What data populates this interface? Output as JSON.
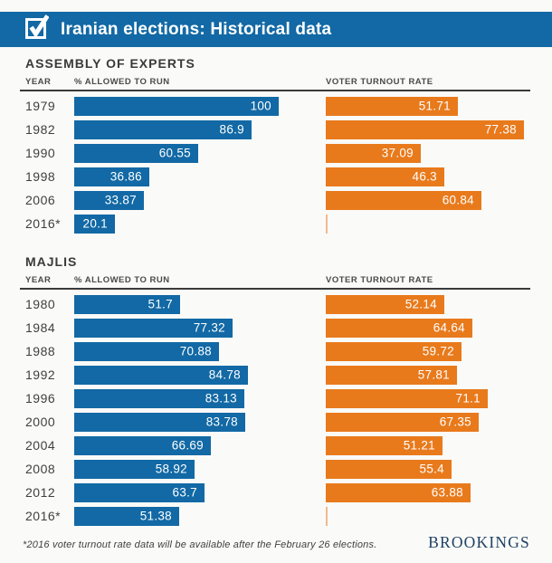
{
  "page": {
    "background": "#fafaf8",
    "accent_blue": "#1269a5",
    "accent_orange": "#e87a1c",
    "rule_color": "#3a3a3a"
  },
  "header": {
    "title": "Iranian elections: Historical data",
    "icon": "checkbox-checked-icon"
  },
  "chart_data": [
    {
      "type": "bar",
      "orientation": "horizontal",
      "title": "ASSEMBLY OF EXPERTS",
      "columns": {
        "year": "YEAR",
        "allowed": "% ALLOWED TO RUN",
        "turnout": "VOTER TURNOUT RATE"
      },
      "categories": [
        "1979",
        "1982",
        "1990",
        "1998",
        "2006",
        "2016*"
      ],
      "series": [
        {
          "name": "% ALLOWED TO RUN",
          "color": "#1269a5",
          "xlim": [
            0,
            100
          ],
          "values": [
            100,
            86.9,
            60.55,
            36.86,
            33.87,
            20.1
          ]
        },
        {
          "name": "VOTER TURNOUT RATE",
          "color": "#e87a1c",
          "xlim": [
            0,
            80
          ],
          "values": [
            51.71,
            77.38,
            37.09,
            46.3,
            60.84,
            null
          ]
        }
      ],
      "legend": "none",
      "grid": "off",
      "value_labels": "inside-end"
    },
    {
      "type": "bar",
      "orientation": "horizontal",
      "title": "MAJLIS",
      "columns": {
        "year": "YEAR",
        "allowed": "% ALLOWED TO RUN",
        "turnout": "VOTER TURNOUT RATE"
      },
      "categories": [
        "1980",
        "1984",
        "1988",
        "1992",
        "1996",
        "2000",
        "2004",
        "2008",
        "2012",
        "2016*"
      ],
      "series": [
        {
          "name": "% ALLOWED TO RUN",
          "color": "#1269a5",
          "xlim": [
            0,
            100
          ],
          "values": [
            51.7,
            77.32,
            70.88,
            84.78,
            83.13,
            83.78,
            66.69,
            58.92,
            63.7,
            51.38
          ]
        },
        {
          "name": "VOTER TURNOUT RATE",
          "color": "#e87a1c",
          "xlim": [
            0,
            90
          ],
          "values": [
            52.14,
            64.64,
            59.72,
            57.81,
            71.1,
            67.35,
            51.21,
            55.4,
            63.88,
            null
          ]
        }
      ],
      "legend": "none",
      "grid": "off",
      "value_labels": "inside-end"
    }
  ],
  "footer": {
    "footnote": "*2016 voter turnout rate data will be available after the February 26 elections.",
    "brand": "BROOKINGS"
  }
}
